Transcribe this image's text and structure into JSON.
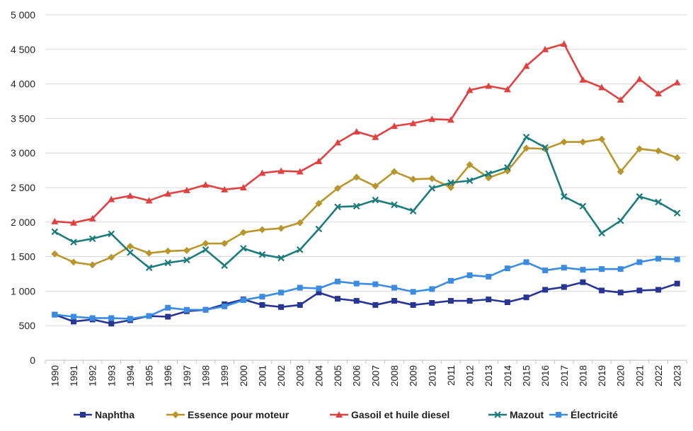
{
  "chart_data": {
    "type": "line",
    "x": [
      "1990",
      "1991",
      "1992",
      "1993",
      "1994",
      "1995",
      "1996",
      "1997",
      "1998",
      "1999",
      "2000",
      "2001",
      "2002",
      "2003",
      "2004",
      "2005",
      "2006",
      "2007",
      "2008",
      "2009",
      "2010",
      "2011",
      "2012",
      "2013",
      "2014",
      "2015",
      "2016",
      "2017",
      "2018",
      "2019",
      "2020",
      "2021",
      "2022",
      "2023"
    ],
    "ylim": [
      0,
      5000
    ],
    "yticks": [
      0,
      500,
      1000,
      1500,
      2000,
      2500,
      3000,
      3500,
      4000,
      4500,
      5000
    ],
    "ytick_labels": [
      "0",
      "500",
      "1 000",
      "1 500",
      "2 000",
      "2 500",
      "3 000",
      "3 500",
      "4 000",
      "4 500",
      "5 000"
    ],
    "grid": "horizontal",
    "legend_position": "bottom",
    "series": [
      {
        "name": "Naphtha",
        "color": "#283593",
        "marker": "square",
        "values": [
          660,
          560,
          590,
          530,
          580,
          640,
          630,
          710,
          730,
          810,
          880,
          800,
          770,
          800,
          980,
          890,
          860,
          800,
          860,
          800,
          830,
          860,
          860,
          880,
          840,
          910,
          1020,
          1060,
          1130,
          1010,
          980,
          1010,
          1020,
          1110
        ]
      },
      {
        "name": "Essence pour moteur",
        "color": "#B8962E",
        "marker": "diamond",
        "values": [
          1540,
          1420,
          1380,
          1490,
          1650,
          1550,
          1580,
          1590,
          1690,
          1690,
          1850,
          1890,
          1910,
          1990,
          2270,
          2490,
          2650,
          2520,
          2730,
          2620,
          2630,
          2500,
          2830,
          2640,
          2740,
          3070,
          3060,
          3160,
          3160,
          3200,
          2730,
          3060,
          3030,
          2930
        ]
      },
      {
        "name": "Gasoil et huile diesel",
        "color": "#E04141",
        "marker": "triangle",
        "values": [
          2010,
          1990,
          2050,
          2330,
          2380,
          2310,
          2410,
          2460,
          2540,
          2470,
          2500,
          2710,
          2740,
          2730,
          2880,
          3150,
          3310,
          3230,
          3390,
          3430,
          3490,
          3480,
          3910,
          3970,
          3920,
          4260,
          4500,
          4580,
          4060,
          3950,
          3770,
          4070,
          3860,
          4020
        ]
      },
      {
        "name": "Mazout",
        "color": "#1E7B7B",
        "marker": "x",
        "values": [
          1860,
          1710,
          1760,
          1830,
          1560,
          1340,
          1410,
          1450,
          1600,
          1370,
          1620,
          1530,
          1480,
          1600,
          1900,
          2220,
          2230,
          2320,
          2250,
          2160,
          2490,
          2570,
          2600,
          2700,
          2790,
          3230,
          3080,
          2370,
          2230,
          1840,
          2020,
          2370,
          2290,
          2130
        ]
      },
      {
        "name": "Électricité",
        "color": "#3B8BE0",
        "marker": "square",
        "values": [
          660,
          630,
          610,
          610,
          600,
          640,
          760,
          730,
          730,
          780,
          870,
          920,
          980,
          1050,
          1040,
          1140,
          1110,
          1100,
          1050,
          990,
          1030,
          1150,
          1230,
          1210,
          1330,
          1420,
          1300,
          1340,
          1310,
          1320,
          1320,
          1420,
          1470,
          1460
        ]
      }
    ]
  }
}
